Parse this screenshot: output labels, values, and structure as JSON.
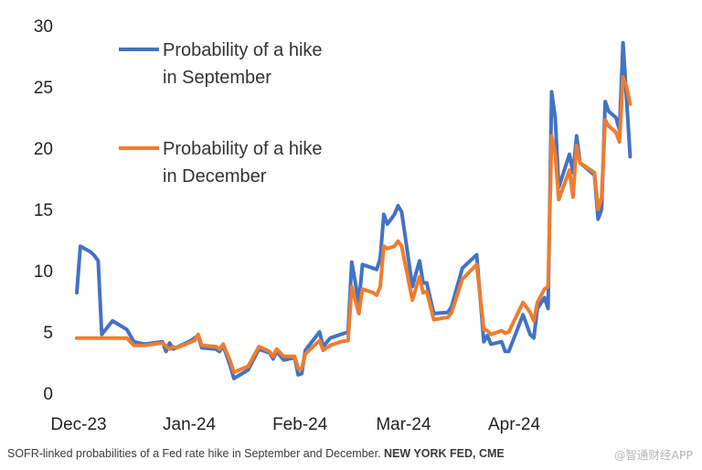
{
  "chart_data": {
    "type": "line",
    "title": "",
    "xlabel": "",
    "ylabel": "",
    "ylim": [
      0,
      30
    ],
    "yticks": [
      0,
      5,
      10,
      15,
      20,
      25,
      30
    ],
    "xlim": [
      "2023-12-01",
      "2024-05-19"
    ],
    "xticks": [
      {
        "label": "Dec-23",
        "date": "2023-12-01"
      },
      {
        "label": "Jan-24",
        "date": "2024-01-01"
      },
      {
        "label": "Feb-24",
        "date": "2024-02-01"
      },
      {
        "label": "Mar-24",
        "date": "2024-03-01"
      },
      {
        "label": "Apr-24",
        "date": "2024-04-01"
      }
    ],
    "grid": false,
    "legend_position": "top-left",
    "series": [
      {
        "name": "Probability of a hike in September",
        "legend_lines": [
          "Probability of a hike",
          "in September"
        ],
        "color": "#4472C4",
        "points": [
          [
            "2023-12-01",
            8.2
          ],
          [
            "2023-12-02",
            12.0
          ],
          [
            "2023-12-05",
            11.5
          ],
          [
            "2023-12-06",
            11.2
          ],
          [
            "2023-12-07",
            10.8
          ],
          [
            "2023-12-08",
            4.8
          ],
          [
            "2023-12-11",
            5.9
          ],
          [
            "2023-12-15",
            5.2
          ],
          [
            "2023-12-17",
            4.2
          ],
          [
            "2023-12-20",
            4.0
          ],
          [
            "2023-12-25",
            4.2
          ],
          [
            "2023-12-26",
            3.4
          ],
          [
            "2023-12-27",
            4.1
          ],
          [
            "2023-12-28",
            3.6
          ],
          [
            "2024-01-02",
            4.3
          ],
          [
            "2024-01-04",
            4.7
          ],
          [
            "2024-01-05",
            3.7
          ],
          [
            "2024-01-09",
            3.6
          ],
          [
            "2024-01-10",
            3.4
          ],
          [
            "2024-01-11",
            3.9
          ],
          [
            "2024-01-13",
            2.2
          ],
          [
            "2024-01-14",
            1.2
          ],
          [
            "2024-01-18",
            1.9
          ],
          [
            "2024-01-21",
            3.6
          ],
          [
            "2024-01-24",
            3.3
          ],
          [
            "2024-01-25",
            2.8
          ],
          [
            "2024-01-26",
            3.4
          ],
          [
            "2024-01-28",
            2.7
          ],
          [
            "2024-01-31",
            2.9
          ],
          [
            "2024-02-01",
            1.5
          ],
          [
            "2024-02-02",
            1.6
          ],
          [
            "2024-02-03",
            3.5
          ],
          [
            "2024-02-07",
            5.0
          ],
          [
            "2024-02-08",
            3.8
          ],
          [
            "2024-02-10",
            4.5
          ],
          [
            "2024-02-13",
            4.8
          ],
          [
            "2024-02-15",
            5.0
          ],
          [
            "2024-02-16",
            10.7
          ],
          [
            "2024-02-18",
            7.4
          ],
          [
            "2024-02-19",
            10.5
          ],
          [
            "2024-02-22",
            10.2
          ],
          [
            "2024-02-23",
            10.1
          ],
          [
            "2024-02-24",
            11.0
          ],
          [
            "2024-02-25",
            14.6
          ],
          [
            "2024-02-26",
            13.8
          ],
          [
            "2024-02-28",
            14.6
          ],
          [
            "2024-02-29",
            15.3
          ],
          [
            "2024-03-01",
            14.8
          ],
          [
            "2024-03-04",
            8.7
          ],
          [
            "2024-03-05",
            9.8
          ],
          [
            "2024-03-06",
            10.8
          ],
          [
            "2024-03-07",
            9.0
          ],
          [
            "2024-03-08",
            9.0
          ],
          [
            "2024-03-10",
            6.5
          ],
          [
            "2024-03-14",
            6.6
          ],
          [
            "2024-03-15",
            7.1
          ],
          [
            "2024-03-18",
            10.2
          ],
          [
            "2024-03-22",
            11.3
          ],
          [
            "2024-03-24",
            4.2
          ],
          [
            "2024-03-25",
            4.7
          ],
          [
            "2024-03-26",
            4.0
          ],
          [
            "2024-03-29",
            4.2
          ],
          [
            "2024-03-30",
            3.4
          ],
          [
            "2024-03-31",
            3.4
          ],
          [
            "2024-04-04",
            6.4
          ],
          [
            "2024-04-06",
            4.8
          ],
          [
            "2024-04-07",
            4.5
          ],
          [
            "2024-04-08",
            6.9
          ],
          [
            "2024-04-10",
            7.8
          ],
          [
            "2024-04-11",
            6.9
          ],
          [
            "2024-04-12",
            24.6
          ],
          [
            "2024-04-13",
            22.5
          ],
          [
            "2024-04-14",
            16.8
          ],
          [
            "2024-04-17",
            19.5
          ],
          [
            "2024-04-18",
            18.0
          ],
          [
            "2024-04-19",
            21.0
          ],
          [
            "2024-04-20",
            18.8
          ],
          [
            "2024-04-24",
            17.8
          ],
          [
            "2024-04-25",
            14.2
          ],
          [
            "2024-04-26",
            15.0
          ],
          [
            "2024-04-27",
            23.8
          ],
          [
            "2024-04-28",
            23.0
          ],
          [
            "2024-04-30",
            22.5
          ],
          [
            "2024-05-01",
            21.5
          ],
          [
            "2024-05-02",
            28.6
          ],
          [
            "2024-05-03",
            24.0
          ],
          [
            "2024-05-04",
            19.3
          ]
        ]
      },
      {
        "name": "Probability of a hike in December",
        "legend_lines": [
          "Probability of a hike",
          "in December"
        ],
        "color": "#ED7D31",
        "points": [
          [
            "2023-12-01",
            4.5
          ],
          [
            "2023-12-05",
            4.5
          ],
          [
            "2023-12-10",
            4.5
          ],
          [
            "2023-12-15",
            4.5
          ],
          [
            "2023-12-17",
            3.9
          ],
          [
            "2023-12-20",
            3.9
          ],
          [
            "2023-12-25",
            4.1
          ],
          [
            "2023-12-27",
            3.6
          ],
          [
            "2023-12-28",
            3.8
          ],
          [
            "2023-12-29",
            3.7
          ],
          [
            "2024-01-03",
            4.3
          ],
          [
            "2024-01-04",
            4.8
          ],
          [
            "2024-01-05",
            3.9
          ],
          [
            "2024-01-09",
            3.8
          ],
          [
            "2024-01-10",
            3.6
          ],
          [
            "2024-01-11",
            4.0
          ],
          [
            "2024-01-13",
            2.6
          ],
          [
            "2024-01-14",
            1.7
          ],
          [
            "2024-01-18",
            2.2
          ],
          [
            "2024-01-21",
            3.8
          ],
          [
            "2024-01-24",
            3.4
          ],
          [
            "2024-01-25",
            3.0
          ],
          [
            "2024-01-26",
            3.6
          ],
          [
            "2024-01-28",
            3.0
          ],
          [
            "2024-01-31",
            3.0
          ],
          [
            "2024-02-01",
            2.0
          ],
          [
            "2024-02-02",
            2.0
          ],
          [
            "2024-02-03",
            3.2
          ],
          [
            "2024-02-07",
            4.3
          ],
          [
            "2024-02-08",
            3.5
          ],
          [
            "2024-02-10",
            3.9
          ],
          [
            "2024-02-13",
            4.2
          ],
          [
            "2024-02-15",
            4.3
          ],
          [
            "2024-02-16",
            8.7
          ],
          [
            "2024-02-18",
            6.5
          ],
          [
            "2024-02-19",
            8.5
          ],
          [
            "2024-02-22",
            8.2
          ],
          [
            "2024-02-23",
            8.0
          ],
          [
            "2024-02-24",
            8.7
          ],
          [
            "2024-02-25",
            12.0
          ],
          [
            "2024-02-26",
            11.8
          ],
          [
            "2024-02-28",
            12.0
          ],
          [
            "2024-02-29",
            12.4
          ],
          [
            "2024-03-01",
            12.0
          ],
          [
            "2024-03-04",
            7.6
          ],
          [
            "2024-03-05",
            8.6
          ],
          [
            "2024-03-06",
            9.5
          ],
          [
            "2024-03-07",
            8.2
          ],
          [
            "2024-03-08",
            8.3
          ],
          [
            "2024-03-10",
            6.0
          ],
          [
            "2024-03-14",
            6.2
          ],
          [
            "2024-03-15",
            6.6
          ],
          [
            "2024-03-18",
            9.3
          ],
          [
            "2024-03-22",
            10.5
          ],
          [
            "2024-03-24",
            5.2
          ],
          [
            "2024-03-25",
            5.1
          ],
          [
            "2024-03-26",
            4.8
          ],
          [
            "2024-03-29",
            5.1
          ],
          [
            "2024-03-30",
            4.9
          ],
          [
            "2024-03-31",
            5.0
          ],
          [
            "2024-04-04",
            7.4
          ],
          [
            "2024-04-06",
            6.6
          ],
          [
            "2024-04-07",
            5.9
          ],
          [
            "2024-04-08",
            7.4
          ],
          [
            "2024-04-10",
            8.5
          ],
          [
            "2024-04-11",
            8.7
          ],
          [
            "2024-04-12",
            21.0
          ],
          [
            "2024-04-13",
            19.5
          ],
          [
            "2024-04-14",
            15.8
          ],
          [
            "2024-04-17",
            18.2
          ],
          [
            "2024-04-18",
            16.0
          ],
          [
            "2024-04-19",
            20.2
          ],
          [
            "2024-04-20",
            18.8
          ],
          [
            "2024-04-24",
            18.0
          ],
          [
            "2024-04-25",
            15.0
          ],
          [
            "2024-04-26",
            16.0
          ],
          [
            "2024-04-27",
            22.3
          ],
          [
            "2024-04-28",
            21.8
          ],
          [
            "2024-04-30",
            21.3
          ],
          [
            "2024-05-01",
            20.5
          ],
          [
            "2024-05-02",
            25.8
          ],
          [
            "2024-05-03",
            25.0
          ],
          [
            "2024-05-04",
            23.6
          ]
        ]
      }
    ]
  },
  "caption": {
    "text": "SOFR-linked probabilities of a Fed rate hike in September and December.",
    "source": "NEW YORK FED, CME"
  },
  "watermark": "@智通财经APP"
}
